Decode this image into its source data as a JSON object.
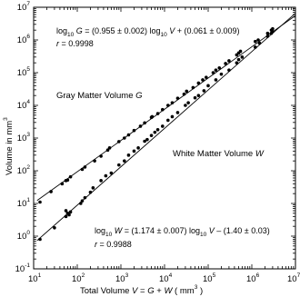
{
  "chart_data": {
    "type": "scatter",
    "title": "",
    "scale": {
      "x": "log",
      "y": "log"
    },
    "xlim": [
      10,
      10000000
    ],
    "ylim": [
      0.1,
      10000000
    ],
    "grid": false,
    "legend": "none",
    "x_axis": {
      "label_main": "Total Volume ",
      "label_italic_v": "V",
      "label_eq": " = ",
      "label_italic_g": "G",
      "label_plus": " + ",
      "label_italic_w": "W",
      "label_unit": " ( mm",
      "label_unit_exp": "3",
      "label_close": " )",
      "ticks": [
        {
          "base": "10",
          "exp": "1"
        },
        {
          "base": "10",
          "exp": "2"
        },
        {
          "base": "10",
          "exp": "3"
        },
        {
          "base": "10",
          "exp": "4"
        },
        {
          "base": "10",
          "exp": "5"
        },
        {
          "base": "10",
          "exp": "6"
        },
        {
          "base": "10",
          "exp": "7"
        }
      ]
    },
    "y_axis": {
      "label": "Volume in mm",
      "label_exp": "3",
      "ticks": [
        {
          "base": "10",
          "exp": "-1"
        },
        {
          "base": "10",
          "exp": "0"
        },
        {
          "base": "10",
          "exp": "1"
        },
        {
          "base": "10",
          "exp": "2"
        },
        {
          "base": "10",
          "exp": "3"
        },
        {
          "base": "10",
          "exp": "4"
        },
        {
          "base": "10",
          "exp": "5"
        },
        {
          "base": "10",
          "exp": "6"
        },
        {
          "base": "10",
          "exp": "7"
        }
      ]
    },
    "series": [
      {
        "name": "Gray Matter Volume G",
        "label_text": "Gray Matter Volume ",
        "label_italic": "G",
        "fit": {
          "slope": 0.955,
          "intercept": 0.061
        },
        "points": [
          [
            14,
            11
          ],
          [
            25,
            23
          ],
          [
            45,
            40
          ],
          [
            55,
            50
          ],
          [
            60,
            52
          ],
          [
            70,
            65
          ],
          [
            130,
            110
          ],
          [
            150,
            130
          ],
          [
            250,
            200
          ],
          [
            350,
            280
          ],
          [
            500,
            430
          ],
          [
            550,
            500
          ],
          [
            900,
            780
          ],
          [
            1200,
            1000
          ],
          [
            1500,
            1250
          ],
          [
            2000,
            1700
          ],
          [
            2800,
            2300
          ],
          [
            3500,
            2900
          ],
          [
            5000,
            4300
          ],
          [
            5200,
            4500
          ],
          [
            7000,
            5600
          ],
          [
            9000,
            7400
          ],
          [
            12000,
            10000
          ],
          [
            15000,
            12000
          ],
          [
            20000,
            16500
          ],
          [
            28000,
            22000
          ],
          [
            32000,
            27000
          ],
          [
            45000,
            35000
          ],
          [
            60000,
            48000
          ],
          [
            75000,
            60000
          ],
          [
            90000,
            72000
          ],
          [
            130000,
            100000
          ],
          [
            150000,
            120000
          ],
          [
            180000,
            140000
          ],
          [
            250000,
            190000
          ],
          [
            300000,
            230000
          ],
          [
            450000,
            350000
          ],
          [
            500000,
            400000
          ],
          [
            550000,
            450000
          ],
          [
            1200000,
            900000
          ],
          [
            1400000,
            1000000
          ],
          [
            2300000,
            1600000
          ],
          [
            2800000,
            2000000
          ],
          [
            3000000,
            2200000
          ]
        ]
      },
      {
        "name": "White Matter Volume W",
        "label_text": "White Matter Volume ",
        "label_italic": "W",
        "fit": {
          "slope": 1.174,
          "intercept": -1.4
        },
        "points": [
          [
            14,
            0.8
          ],
          [
            30,
            1.8
          ],
          [
            55,
            4
          ],
          [
            60,
            5
          ],
          [
            55,
            6
          ],
          [
            65,
            4.5
          ],
          [
            70,
            5.5
          ],
          [
            120,
            10
          ],
          [
            130,
            12
          ],
          [
            150,
            15
          ],
          [
            200,
            22
          ],
          [
            230,
            30
          ],
          [
            350,
            50
          ],
          [
            450,
            70
          ],
          [
            600,
            85
          ],
          [
            900,
            150
          ],
          [
            1200,
            200
          ],
          [
            1500,
            300
          ],
          [
            2000,
            400
          ],
          [
            2500,
            500
          ],
          [
            3500,
            800
          ],
          [
            4000,
            900
          ],
          [
            5000,
            1200
          ],
          [
            6000,
            1500
          ],
          [
            7000,
            1800
          ],
          [
            9000,
            2300
          ],
          [
            12000,
            3500
          ],
          [
            15000,
            4500
          ],
          [
            20000,
            6000
          ],
          [
            30000,
            10000
          ],
          [
            35000,
            12000
          ],
          [
            50000,
            17000
          ],
          [
            60000,
            20000
          ],
          [
            80000,
            28000
          ],
          [
            100000,
            40000
          ],
          [
            150000,
            60000
          ],
          [
            200000,
            90000
          ],
          [
            300000,
            120000
          ],
          [
            450000,
            200000
          ],
          [
            500000,
            250000
          ],
          [
            600000,
            300000
          ],
          [
            1200000,
            600000
          ],
          [
            1500000,
            800000
          ],
          [
            2300000,
            1300000
          ],
          [
            2800000,
            1600000
          ],
          [
            3000000,
            1800000
          ]
        ]
      }
    ],
    "annotations": {
      "gray_fit_log": "log",
      "gray_fit_sub": "10",
      "gray_fit_g": " G",
      "gray_fit_eq": " = (0.955 ± 0.002) log",
      "gray_fit_sub2": "10",
      "gray_fit_v": " V",
      "gray_fit_tail": " + (0.061 ± 0.009)",
      "gray_r_label": "r",
      "gray_r_value": " = 0.9998",
      "white_fit_log": "log",
      "white_fit_sub": "10",
      "white_fit_w": " W",
      "white_fit_eq": " = (1.174 ± 0.007) log",
      "white_fit_sub2": "10",
      "white_fit_v": " V",
      "white_fit_tail": " – (1.40 ± 0.03)",
      "white_r_label": "r",
      "white_r_value": " = 0.9988"
    }
  }
}
